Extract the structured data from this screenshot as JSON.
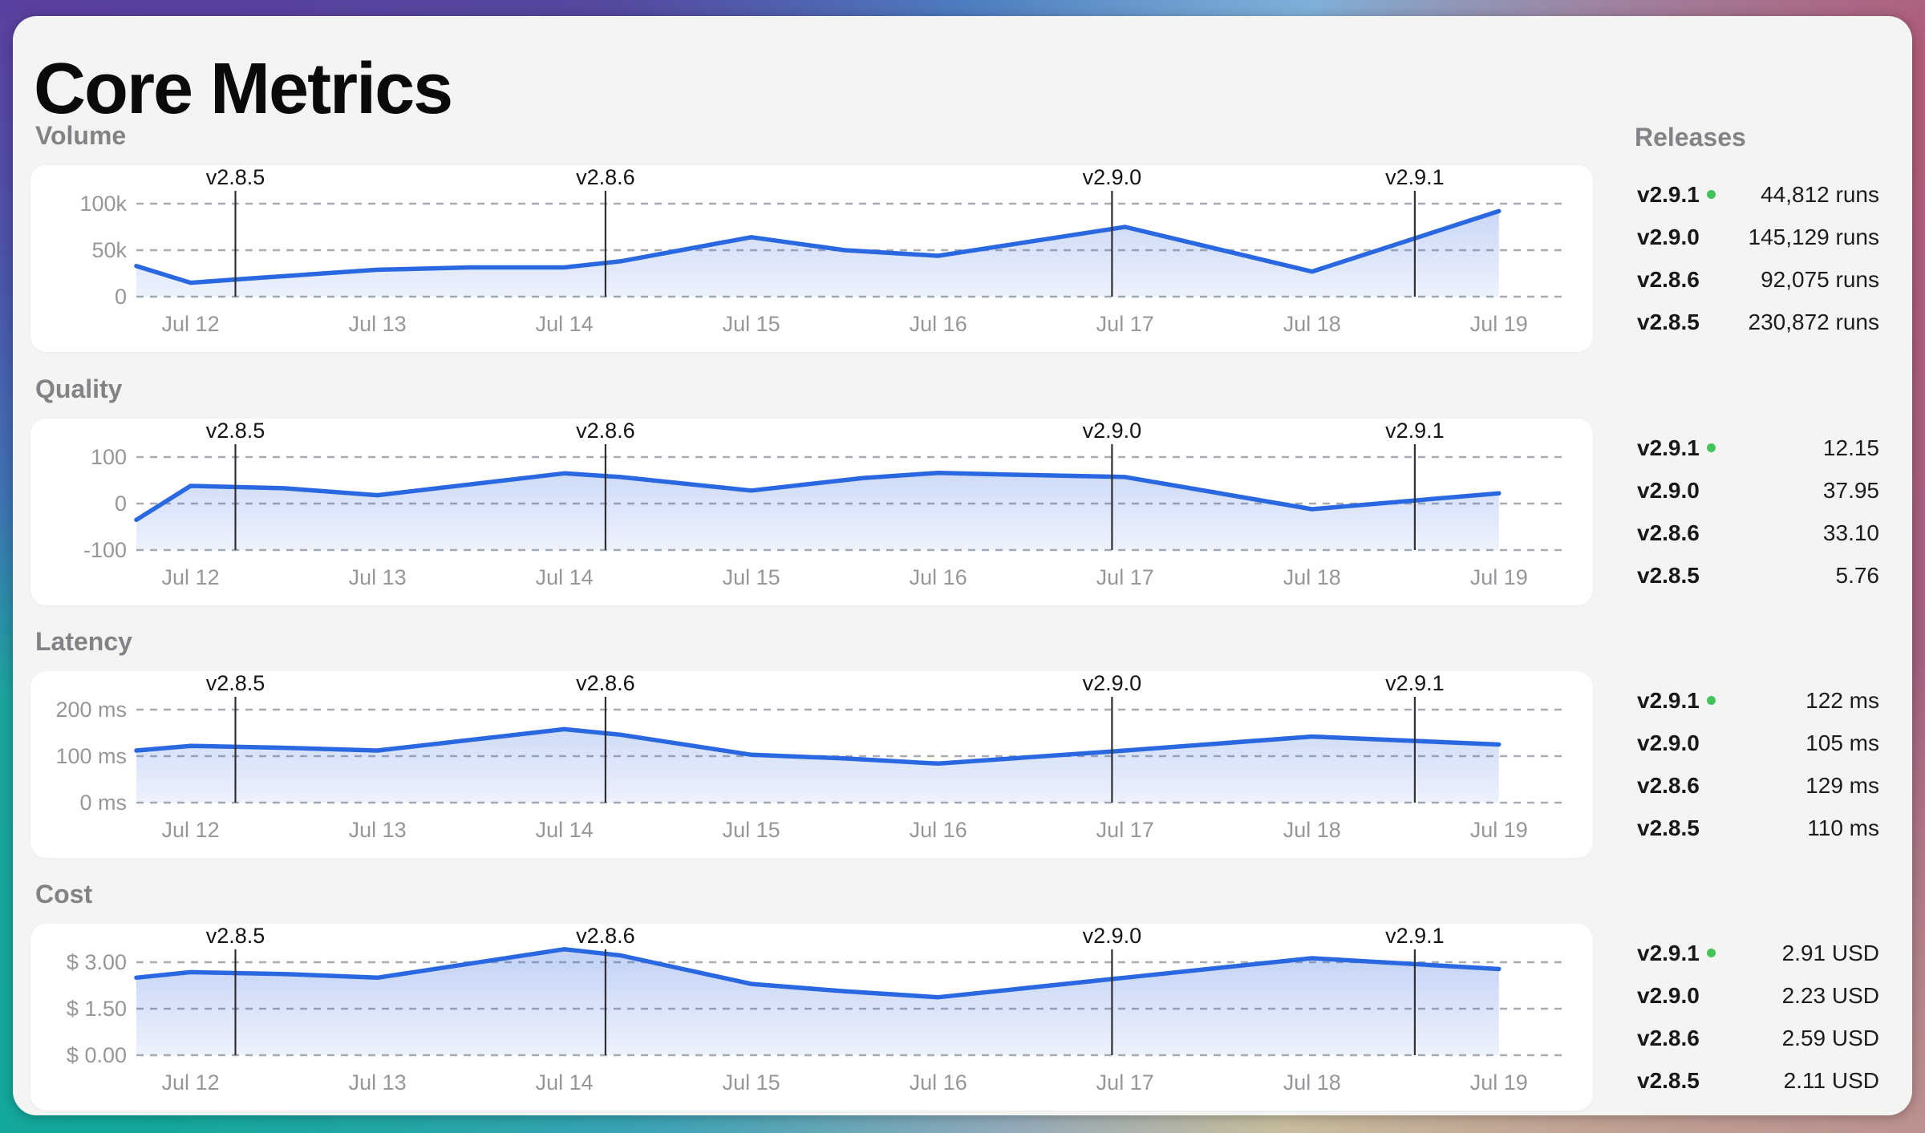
{
  "title": "Core Metrics",
  "releases_panel": {
    "header": "Releases",
    "groups": [
      {
        "metric": "Volume",
        "rows": [
          {
            "version": "v2.9.1",
            "latest": true,
            "value": "44,812 runs"
          },
          {
            "version": "v2.9.0",
            "latest": false,
            "value": "145,129 runs"
          },
          {
            "version": "v2.8.6",
            "latest": false,
            "value": "92,075 runs"
          },
          {
            "version": "v2.8.5",
            "latest": false,
            "value": "230,872 runs"
          }
        ]
      },
      {
        "metric": "Quality",
        "rows": [
          {
            "version": "v2.9.1",
            "latest": true,
            "value": "12.15"
          },
          {
            "version": "v2.9.0",
            "latest": false,
            "value": "37.95"
          },
          {
            "version": "v2.8.6",
            "latest": false,
            "value": "33.10"
          },
          {
            "version": "v2.8.5",
            "latest": false,
            "value": "5.76"
          }
        ]
      },
      {
        "metric": "Latency",
        "rows": [
          {
            "version": "v2.9.1",
            "latest": true,
            "value": "122 ms"
          },
          {
            "version": "v2.9.0",
            "latest": false,
            "value": "105 ms"
          },
          {
            "version": "v2.8.6",
            "latest": false,
            "value": "129 ms"
          },
          {
            "version": "v2.8.5",
            "latest": false,
            "value": "110 ms"
          }
        ]
      },
      {
        "metric": "Cost",
        "rows": [
          {
            "version": "v2.9.1",
            "latest": true,
            "value": "2.91 USD"
          },
          {
            "version": "v2.9.0",
            "latest": false,
            "value": "2.23 USD"
          },
          {
            "version": "v2.8.6",
            "latest": false,
            "value": "2.59 USD"
          },
          {
            "version": "v2.8.5",
            "latest": false,
            "value": "2.11 USD"
          }
        ]
      }
    ]
  },
  "chart_data": [
    {
      "type": "area",
      "title": "Volume",
      "unit": "runs",
      "x_tick_labels": [
        "Jul 12",
        "Jul 13",
        "Jul 14",
        "Jul 15",
        "Jul 16",
        "Jul 17",
        "Jul 18",
        "Jul 19"
      ],
      "x_domain_days": [
        -0.29,
        7.34
      ],
      "y_axis_range": [
        0,
        100000
      ],
      "y_gridlines": [
        {
          "label": "100k",
          "value": 100000
        },
        {
          "label": "50k",
          "value": 50000
        },
        {
          "label": "0",
          "value": 0
        }
      ],
      "markers": [
        {
          "label": "v2.8.5",
          "day": 0.24
        },
        {
          "label": "v2.8.6",
          "day": 2.22
        },
        {
          "label": "v2.9.0",
          "day": 4.93
        },
        {
          "label": "v2.9.1",
          "day": 6.55
        }
      ],
      "series": [
        {
          "name": "volume_runs",
          "points": [
            [
              -0.29,
              33000
            ],
            [
              0,
              15000
            ],
            [
              0.35,
              20000
            ],
            [
              1,
              29000
            ],
            [
              1.5,
              31500
            ],
            [
              2,
              31500
            ],
            [
              2.3,
              38000
            ],
            [
              3,
              64000
            ],
            [
              3.5,
              50000
            ],
            [
              4,
              44000
            ],
            [
              5,
              75000
            ],
            [
              6,
              27000
            ],
            [
              7,
              92000
            ]
          ]
        }
      ],
      "grid": true,
      "legend": "none"
    },
    {
      "type": "area",
      "title": "Quality",
      "unit": "",
      "x_tick_labels": [
        "Jul 12",
        "Jul 13",
        "Jul 14",
        "Jul 15",
        "Jul 16",
        "Jul 17",
        "Jul 18",
        "Jul 19"
      ],
      "x_domain_days": [
        -0.29,
        7.34
      ],
      "y_axis_range": [
        -100,
        100
      ],
      "y_gridlines": [
        {
          "label": "100",
          "value": 100
        },
        {
          "label": "0",
          "value": 0
        },
        {
          "label": "-100",
          "value": -100
        }
      ],
      "markers": [
        {
          "label": "v2.8.5",
          "day": 0.24
        },
        {
          "label": "v2.8.6",
          "day": 2.22
        },
        {
          "label": "v2.9.0",
          "day": 4.93
        },
        {
          "label": "v2.9.1",
          "day": 6.55
        }
      ],
      "series": [
        {
          "name": "quality_score",
          "points": [
            [
              -0.29,
              -35
            ],
            [
              0,
              38
            ],
            [
              0.5,
              33
            ],
            [
              1,
              18
            ],
            [
              2,
              65
            ],
            [
              2.3,
              57
            ],
            [
              3,
              28
            ],
            [
              3.6,
              55
            ],
            [
              4,
              66
            ],
            [
              4.4,
              62
            ],
            [
              5,
              57
            ],
            [
              6,
              -12
            ],
            [
              7,
              22
            ]
          ]
        }
      ],
      "grid": true,
      "legend": "none"
    },
    {
      "type": "area",
      "title": "Latency",
      "unit": "ms",
      "x_tick_labels": [
        "Jul 12",
        "Jul 13",
        "Jul 14",
        "Jul 15",
        "Jul 16",
        "Jul 17",
        "Jul 18",
        "Jul 19"
      ],
      "x_domain_days": [
        -0.29,
        7.34
      ],
      "y_axis_range": [
        0,
        200
      ],
      "y_gridlines": [
        {
          "label": "200 ms",
          "value": 200
        },
        {
          "label": "100 ms",
          "value": 100
        },
        {
          "label": "0 ms",
          "value": 0
        }
      ],
      "markers": [
        {
          "label": "v2.8.5",
          "day": 0.24
        },
        {
          "label": "v2.8.6",
          "day": 2.22
        },
        {
          "label": "v2.9.0",
          "day": 4.93
        },
        {
          "label": "v2.9.1",
          "day": 6.55
        }
      ],
      "series": [
        {
          "name": "latency_ms",
          "points": [
            [
              -0.29,
              112
            ],
            [
              0,
              122
            ],
            [
              0.5,
              118
            ],
            [
              1,
              112
            ],
            [
              2,
              158
            ],
            [
              2.3,
              146
            ],
            [
              3,
              103
            ],
            [
              3.5,
              95
            ],
            [
              4,
              84
            ],
            [
              5,
              112
            ],
            [
              6,
              142
            ],
            [
              7,
              125
            ]
          ]
        }
      ],
      "grid": true,
      "legend": "none"
    },
    {
      "type": "area",
      "title": "Cost",
      "unit": "USD",
      "x_tick_labels": [
        "Jul 12",
        "Jul 13",
        "Jul 14",
        "Jul 15",
        "Jul 16",
        "Jul 17",
        "Jul 18",
        "Jul 19"
      ],
      "x_domain_days": [
        -0.29,
        7.34
      ],
      "y_axis_range": [
        0,
        3
      ],
      "y_gridlines": [
        {
          "label": "$ 3.00",
          "value": 3.0
        },
        {
          "label": "$ 1.50",
          "value": 1.5
        },
        {
          "label": "$ 0.00",
          "value": 0.0
        }
      ],
      "markers": [
        {
          "label": "v2.8.5",
          "day": 0.24
        },
        {
          "label": "v2.8.6",
          "day": 2.22
        },
        {
          "label": "v2.9.0",
          "day": 4.93
        },
        {
          "label": "v2.9.1",
          "day": 6.55
        }
      ],
      "series": [
        {
          "name": "cost_usd",
          "points": [
            [
              -0.29,
              2.5
            ],
            [
              0,
              2.68
            ],
            [
              0.5,
              2.62
            ],
            [
              1,
              2.5
            ],
            [
              2,
              3.42
            ],
            [
              2.3,
              3.22
            ],
            [
              3,
              2.3
            ],
            [
              3.5,
              2.06
            ],
            [
              4,
              1.87
            ],
            [
              5,
              2.5
            ],
            [
              6,
              3.13
            ],
            [
              7,
              2.78
            ]
          ]
        }
      ],
      "grid": true,
      "legend": "none"
    }
  ],
  "colors": {
    "line": "#2a68e2",
    "area_top": "rgba(59,110,224,0.30)",
    "area_bottom": "rgba(59,110,224,0.02)",
    "gridline": "#a7abb2",
    "axis_text": "#96969b",
    "marker_line": "#303034",
    "marker_text": "#141418",
    "section_label": "#828287",
    "latest_dot": "#45c35b",
    "panel_bg": "#f4f4f3",
    "card_bg": "#ffffff",
    "frame_gradient": [
      {
        "color": "#4d7cc0",
        "angle": 0
      },
      {
        "color": "#7fb0d8",
        "angle": 32
      },
      {
        "color": "#9d86a3",
        "angle": 48
      },
      {
        "color": "#b05a78",
        "angle": 62
      },
      {
        "color": "#a2607f",
        "angle": 95
      },
      {
        "color": "#bd9490",
        "angle": 122
      },
      {
        "color": "#c8bd9d",
        "angle": 150
      },
      {
        "color": "#93aaba",
        "angle": 175
      },
      {
        "color": "#3aa3b5",
        "angle": 210
      },
      {
        "color": "#12a89b",
        "angle": 237
      },
      {
        "color": "#1ba49e",
        "angle": 262
      },
      {
        "color": "#3f72b2",
        "angle": 274
      },
      {
        "color": "#4b55a8",
        "angle": 287
      },
      {
        "color": "#5b3f9f",
        "angle": 301
      },
      {
        "color": "#54489f",
        "angle": 327
      },
      {
        "color": "#4d7cc0",
        "angle": 360
      }
    ]
  }
}
